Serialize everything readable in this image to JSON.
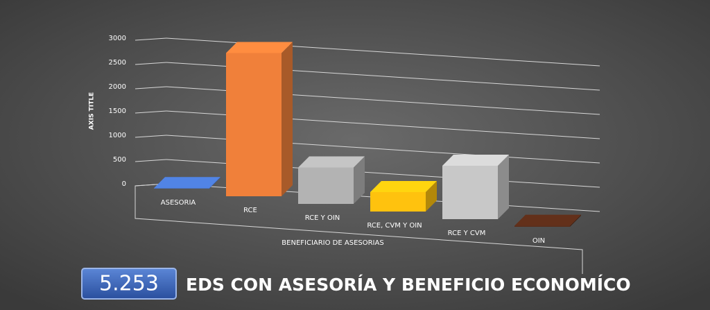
{
  "chart_data": {
    "type": "bar3d",
    "y_axis_label": "AXIS TITLE",
    "x_axis_label": "BENEFICIARIO DE ASESORIAS",
    "categories": [
      "ASESORIA",
      "RCE",
      "RCE Y OIN",
      "RCE, CVM Y OIN",
      "RCE Y CVM",
      "OIN"
    ],
    "values": [
      10,
      2950,
      750,
      400,
      1100,
      20
    ],
    "colors": [
      "#4a78d0",
      "#f0803a",
      "#b3b3b3",
      "#ffc20e",
      "#c8c8c8",
      "#5a2c18"
    ],
    "ylim": [
      0,
      3000
    ],
    "yticks": [
      0,
      500,
      1000,
      1500,
      2000,
      2500,
      3000
    ],
    "grid": true,
    "badge": "5.253",
    "caption": "EDS CON ASESORÍA Y BENEFICIO ECONOMÍCO"
  }
}
